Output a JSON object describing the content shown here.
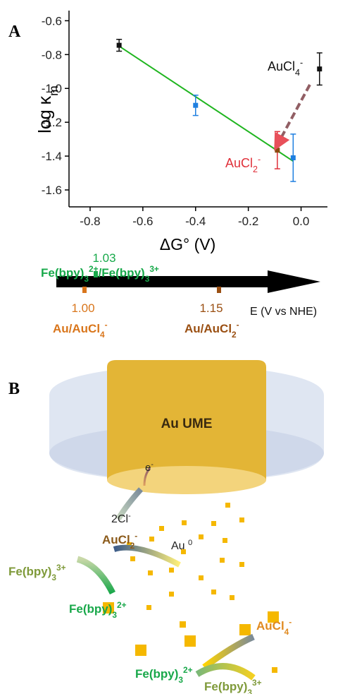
{
  "panel_labels": [
    "A",
    "B"
  ],
  "chart_data": {
    "type": "scatter",
    "xlabel": "ΔG° (V)",
    "ylabel": [
      {
        "base": "log κ",
        "sub": "m"
      }
    ],
    "xlim": [
      -0.88,
      0.1
    ],
    "ylim": [
      -1.7,
      -0.54
    ],
    "xticks": [
      -0.8,
      -0.6,
      -0.4,
      -0.2,
      {
        "value": 0,
        "label": "0.0"
      }
    ],
    "yticks": [
      -0.6,
      -0.8,
      {
        "value": -1,
        "label": "-1.0"
      },
      -1.2,
      -1.4,
      -1.6
    ],
    "points": [
      {
        "x": -0.69,
        "y": -0.745,
        "error": 0.035,
        "color": "#111111",
        "error_color": "#111111"
      },
      {
        "x": -0.4,
        "y": -1.1,
        "error": 0.06,
        "color": "#1e7fe0",
        "error_color": "#1e7fe0"
      },
      {
        "x": -0.09,
        "y": -1.365,
        "error": 0.11,
        "color": "#8b4a10",
        "error_color": "#e0303a"
      },
      {
        "x": -0.03,
        "y": -1.41,
        "error": 0.14,
        "color": "#1e7fe0",
        "error_color": "#1e7fe0"
      },
      {
        "x": 0.07,
        "y": -0.885,
        "error": 0.095,
        "color": "#111111",
        "error_color": "#111111"
      }
    ],
    "fit_line": {
      "x": [
        -0.69,
        -0.03
      ],
      "values": [
        -0.75,
        -1.43
      ],
      "color": "#1fb51f"
    },
    "annotations": [
      {
        "formula": [
          {
            "base": "AuCl",
            "sub": "4",
            "sup": "-"
          }
        ],
        "color": "#111111"
      },
      {
        "formula": [
          {
            "base": "AuCl",
            "sub": "2",
            "sup": "-"
          }
        ],
        "color": "#e0303a"
      }
    ]
  },
  "potential_scale": {
    "axis_label": "E (V vs NHE)",
    "markers": [
      {
        "value": "1.03",
        "couple": [
          {
            "base": "Fe(bpy)",
            "sub": "3",
            "sup": "2+"
          },
          {
            "base": "/Fe(bpy)",
            "sub": "3",
            "sup": "3+"
          }
        ],
        "color": "#17a94a"
      },
      {
        "value": "1.00",
        "couple": [
          {
            "base": "Au/AuCl",
            "sub": "4",
            "sup": "-"
          }
        ],
        "color": "#d9761c"
      },
      {
        "value": "1.15",
        "couple": [
          {
            "base": "Au/AuCl",
            "sub": "2",
            "sup": "-"
          }
        ],
        "color": "#9a4f12"
      }
    ]
  },
  "scheme": {
    "electrode": "Au UME",
    "electron": [
      {
        "base": "e",
        "sup": "-"
      }
    ],
    "chloride": [
      {
        "base": "2Cl",
        "sup": "-"
      }
    ],
    "aucl2": [
      {
        "base": "AuCl",
        "sub": "2",
        "sup": "-"
      }
    ],
    "au0": [
      {
        "base": "Au ",
        "sup": "0"
      }
    ],
    "fe3_left": [
      {
        "base": "Fe(bpy)",
        "sub": "3",
        "sup": "3+"
      }
    ],
    "fe2_left": [
      {
        "base": "Fe(bpy)",
        "sub": "3",
        "sup": "2+"
      }
    ],
    "aucl4": [
      {
        "base": "AuCl",
        "sub": "4",
        "sup": "-"
      }
    ],
    "fe2_bottom": [
      {
        "base": "Fe(bpy)",
        "sub": "3",
        "sup": "2+"
      }
    ],
    "fe3_bottom": [
      {
        "base": "Fe(bpy)",
        "sub": "3",
        "sup": "3+"
      }
    ]
  }
}
